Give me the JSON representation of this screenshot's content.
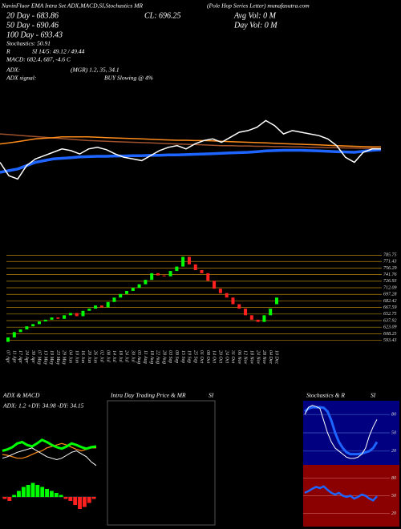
{
  "header": {
    "title_left": "NavinFluor EMA Intra Set ADX,MACD,SI,Stochastics MR",
    "close": "CL: 696.25",
    "title_right": "(Pole Hop Series Letter) munafasutra.com",
    "ema20": "20 Day - 683.86",
    "ema50": "50 Day - 690.46",
    "ema100": "100 Day - 693.43",
    "stoch": "Stochastics: 50.91",
    "rsi_r": "R",
    "rsi": "SI 14/5: 49.12 / 49.44",
    "macd": "MACD: 682.4, 687, -4.6  C",
    "adx": "ADX:",
    "adx_value": "(MGR) 1.2, 35, 34.1",
    "adx_signal": "ADX  signal:",
    "adx_signal_value": "BUY Slowing @ 4%",
    "avg_vol": "Avg Vol: 0  M",
    "day_vol": "Day Vol: 0   M"
  },
  "panels": {
    "adx_title": "ADX  & MACD",
    "intra_title": "Intra Day Trading Price  & MR",
    "intra_si": "SI",
    "stoch_title": "Stochastics & R",
    "stoch_si": "SI",
    "adx_values": "ADX: 1.2  +DY: 34.98  -DY: 34.15"
  },
  "chart_data": [
    {
      "type": "line",
      "ylim": [
        560,
        800
      ],
      "series": [
        {
          "color": "#a0522d",
          "width": 1.5,
          "values": [
            735,
            733,
            731,
            729,
            727,
            725,
            723,
            721,
            719,
            717,
            715,
            714,
            713,
            712,
            711,
            710,
            709,
            708,
            707,
            706,
            705,
            704,
            703,
            702,
            701,
            700,
            700,
            699,
            699,
            698,
            698,
            697,
            697,
            696,
            696,
            695,
            695,
            694,
            694,
            693,
            693,
            692,
            692,
            691
          ]
        },
        {
          "color": "#ff8c1a",
          "width": 1.5,
          "values": [
            705,
            708,
            712,
            716,
            720,
            722,
            724,
            726,
            726,
            726,
            726,
            725,
            724,
            723,
            722,
            721,
            720,
            719,
            718,
            717,
            716,
            716,
            715,
            715,
            714,
            713,
            712,
            711,
            710,
            709,
            708,
            707,
            706,
            705,
            704,
            703,
            702,
            701,
            700,
            699,
            698,
            697,
            696,
            696
          ]
        },
        {
          "color": "#1e64ff",
          "width": 3.5,
          "values": [
            620,
            625,
            630,
            640,
            650,
            655,
            660,
            662,
            664,
            666,
            667,
            668,
            668,
            669,
            669,
            670,
            670,
            671,
            671,
            672,
            672,
            673,
            674,
            675,
            676,
            677,
            678,
            679,
            680,
            682,
            684,
            685,
            686,
            686,
            686,
            685,
            684,
            683,
            682,
            681,
            680,
            683,
            686,
            688
          ]
        },
        {
          "color": "#ffffff",
          "width": 1.5,
          "values": [
            650,
            610,
            600,
            640,
            660,
            670,
            680,
            690,
            685,
            675,
            690,
            695,
            688,
            675,
            665,
            660,
            655,
            670,
            685,
            695,
            700,
            690,
            705,
            715,
            720,
            710,
            725,
            740,
            745,
            755,
            775,
            760,
            735,
            745,
            740,
            735,
            730,
            720,
            700,
            665,
            650,
            680,
            690,
            690
          ]
        }
      ]
    },
    {
      "type": "candlestick",
      "ylim": [
        580,
        790
      ],
      "grid": true,
      "grid_color": "#b8860b",
      "up_color": "#00ff00",
      "down_color": "#ff2020",
      "yticks": [
        785.75,
        771.43,
        756.29,
        741.76,
        726.93,
        712.09,
        697.28,
        682.42,
        667.59,
        652.75,
        637.92,
        623.09,
        608.25,
        593.43
      ],
      "categories": [
        "07 Apr",
        "11 Apr",
        "17 Apr",
        "24 Apr",
        "30 Apr",
        "07 May",
        "13 May",
        "19 May",
        "23 May",
        "29 May",
        "04 Jun",
        "10 Jun",
        "16 Jun",
        "20 Jun",
        "26 Jun",
        "02 Jul",
        "08 Jul",
        "14 Jul",
        "18 Jul",
        "24 Jul",
        "30 Jul",
        "05 Aug",
        "11 Aug",
        "18 Aug",
        "22 Aug",
        "28 Aug",
        "03 Sep",
        "09 Sep",
        "15 Sep",
        "19 Sep",
        "25 Sep",
        "01 Oct",
        "08 Oct",
        "14 Oct",
        "20 Oct",
        "24 Oct",
        "31 Oct",
        "06 Nov",
        "12 Nov",
        "18 Nov",
        "24 Nov",
        "28 Nov",
        "04 Dec",
        "10 Dec"
      ],
      "open": [
        590,
        600,
        612,
        618,
        625,
        630,
        636,
        640,
        645,
        642,
        650,
        655,
        648,
        660,
        665,
        672,
        668,
        680,
        690,
        698,
        705,
        712,
        720,
        730,
        745,
        740,
        738,
        750,
        760,
        782,
        765,
        752,
        745,
        728,
        710,
        700,
        690,
        675,
        665,
        650,
        640,
        635,
        650,
        675
      ],
      "close": [
        600,
        612,
        618,
        625,
        630,
        636,
        640,
        645,
        642,
        650,
        655,
        648,
        660,
        665,
        672,
        668,
        680,
        690,
        698,
        705,
        712,
        720,
        730,
        745,
        740,
        738,
        750,
        760,
        782,
        765,
        752,
        745,
        728,
        710,
        700,
        690,
        675,
        665,
        650,
        640,
        635,
        650,
        665,
        690
      ]
    },
    {
      "type": "line",
      "ylim": [
        0,
        60
      ],
      "series": [
        {
          "color": "#ff8c1a",
          "width": 1.2,
          "values": [
            25,
            24,
            22,
            20,
            20,
            22,
            25,
            28,
            30,
            34,
            36,
            38,
            40,
            38,
            35,
            32,
            30,
            32,
            34,
            34
          ]
        },
        {
          "color": "#00ff00",
          "width": 3,
          "values": [
            30,
            32,
            35,
            40,
            42,
            38,
            36,
            40,
            45,
            42,
            38,
            35,
            33,
            36,
            40,
            38,
            35,
            33,
            35,
            36
          ]
        },
        {
          "color": "#ffffff",
          "width": 1,
          "values": [
            20,
            22,
            25,
            28,
            30,
            32,
            34,
            30,
            26,
            22,
            20,
            18,
            20,
            24,
            28,
            30,
            26,
            22,
            15,
            10
          ]
        }
      ]
    },
    {
      "type": "bar",
      "ylim": [
        -10,
        10
      ],
      "up_color": "#00ff00",
      "down_color": "#ff2020",
      "values": [
        -1,
        -2,
        1,
        3,
        5,
        6,
        7,
        6,
        5,
        4,
        3,
        2,
        1,
        -1,
        -2,
        -4,
        -6,
        -5,
        -3,
        -1
      ]
    },
    {
      "type": "line",
      "ylim": [
        0,
        100
      ],
      "yticks": [
        20,
        50,
        80
      ],
      "background": "#000080",
      "grid": true,
      "grid_color": "#4060c0",
      "series": [
        {
          "color": "#1e64ff",
          "width": 3,
          "values": [
            85,
            90,
            92,
            92,
            92,
            91,
            85,
            70,
            50,
            35,
            25,
            18,
            15,
            15,
            15,
            16,
            18,
            20,
            25,
            35
          ]
        },
        {
          "color": "#ffffff",
          "width": 1,
          "values": [
            80,
            92,
            95,
            93,
            90,
            70,
            50,
            35,
            25,
            20,
            15,
            10,
            8,
            8,
            10,
            15,
            25,
            45,
            60,
            72
          ]
        }
      ]
    },
    {
      "type": "line",
      "ylim": [
        0,
        100
      ],
      "yticks": [
        20,
        50,
        80
      ],
      "background": "#8b0000",
      "grid": true,
      "grid_color": "#c05050",
      "series": [
        {
          "color": "#1e64ff",
          "width": 2.5,
          "values": [
            55,
            58,
            62,
            65,
            63,
            66,
            60,
            55,
            52,
            55,
            50,
            48,
            50,
            45,
            48,
            52,
            50,
            45,
            42,
            49
          ]
        }
      ]
    }
  ]
}
